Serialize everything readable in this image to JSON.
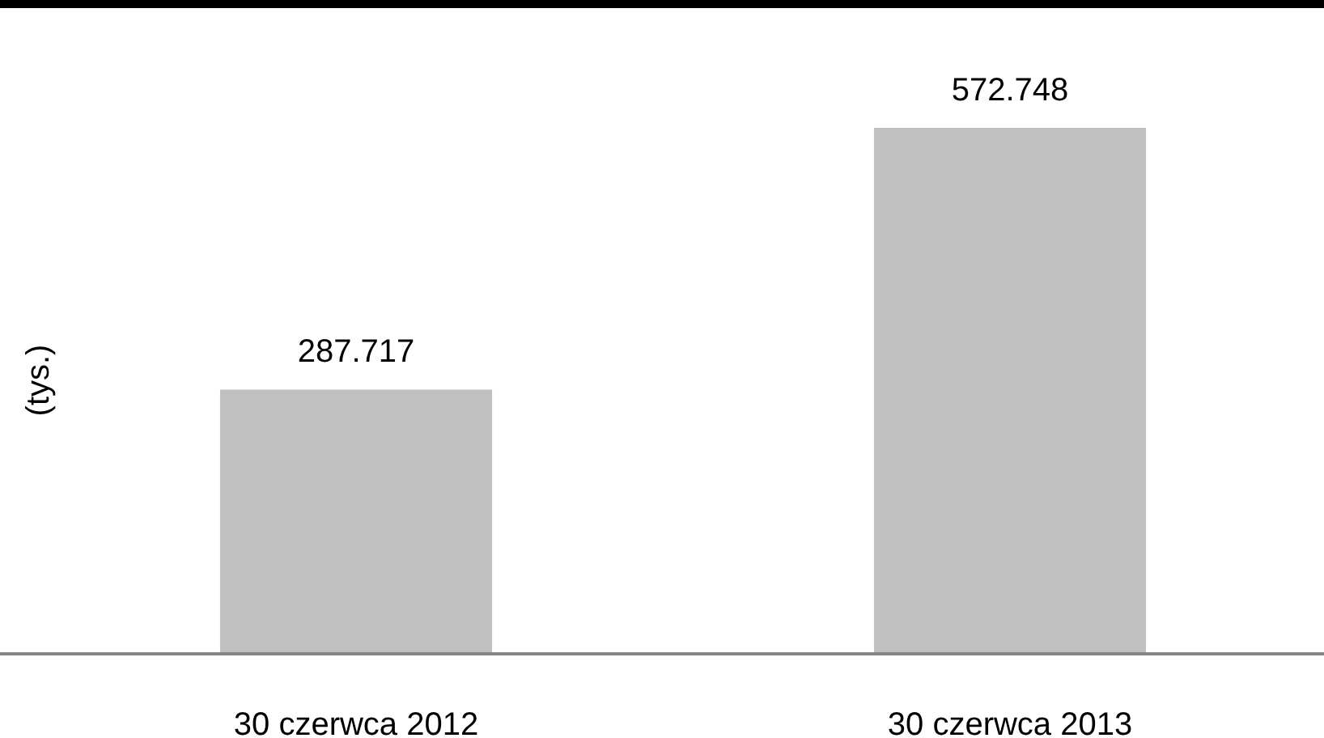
{
  "chart_data": {
    "type": "bar",
    "ylabel": "(tys.)",
    "categories": [
      "30 czerwca 2012",
      "30 czerwca 2013"
    ],
    "values": [
      287.717,
      572.748
    ],
    "color": "#c0c0c0",
    "data_labels": true
  }
}
